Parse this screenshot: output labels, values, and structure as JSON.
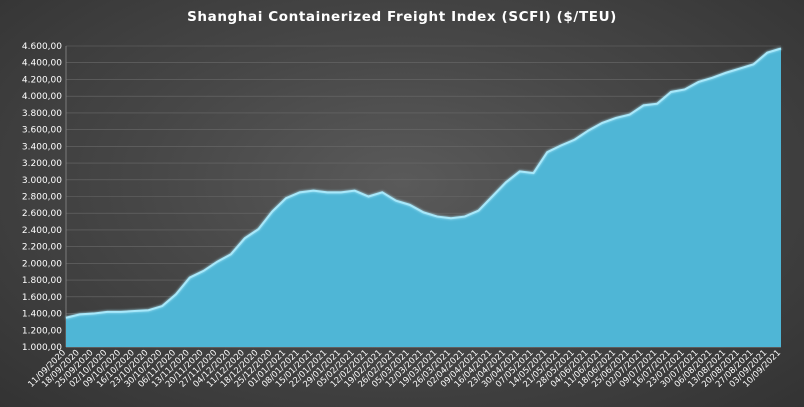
{
  "chart_data": {
    "type": "area",
    "title": "Shanghai Containerized Freight Index  (SCFI) ($/TEU)",
    "xlabel": "",
    "ylabel": "",
    "ylim": [
      1000,
      4600
    ],
    "yticks": [
      1000,
      1200,
      1400,
      1600,
      1800,
      2000,
      2200,
      2400,
      2600,
      2800,
      3000,
      3200,
      3400,
      3600,
      3800,
      4000,
      4200,
      4400,
      4600
    ],
    "ytick_labels": [
      "1.000,00",
      "1.200,00",
      "1.400,00",
      "1.600,00",
      "1.800,00",
      "2.000,00",
      "2.200,00",
      "2.400,00",
      "2.600,00",
      "2.800,00",
      "3.000,00",
      "3.200,00",
      "3.400,00",
      "3.600,00",
      "3.800,00",
      "4.000,00",
      "4.200,00",
      "4.400,00",
      "4.600,00"
    ],
    "grid": true,
    "legend": "none",
    "colors": {
      "fill": "#4fb6d6",
      "line": "#a8e8fa"
    },
    "x": [
      "11/09/2020",
      "18/09/2020",
      "25/09/2020",
      "02/10/2020",
      "09/10/2020",
      "16/10/2020",
      "23/10/2020",
      "30/10/2020",
      "06/11/2020",
      "13/11/2020",
      "20/11/2020",
      "27/11/2020",
      "04/12/2020",
      "11/12/2020",
      "18/12/2020",
      "25/12/2020",
      "01/01/2021",
      "08/01/2021",
      "15/01/2021",
      "22/01/2021",
      "29/01/2021",
      "05/02/2021",
      "12/02/2021",
      "19/02/2021",
      "26/02/2021",
      "05/03/2021",
      "12/03/2021",
      "19/03/2021",
      "26/03/2021",
      "02/04/2021",
      "09/04/2021",
      "16/04/2021",
      "23/04/2021",
      "30/04/2021",
      "07/05/2021",
      "14/05/2021",
      "21/05/2021",
      "28/05/2021",
      "04/06/2021",
      "11/06/2021",
      "18/06/2021",
      "25/06/2021",
      "02/07/2021",
      "09/07/2021",
      "16/07/2021",
      "23/07/2021",
      "30/07/2021",
      "06/08/2021",
      "13/08/2021",
      "20/08/2021",
      "27/08/2021",
      "03/09/2021",
      "10/09/2021"
    ],
    "values": [
      1350,
      1390,
      1400,
      1420,
      1420,
      1430,
      1440,
      1490,
      1630,
      1830,
      1910,
      2020,
      2110,
      2300,
      2410,
      2620,
      2780,
      2850,
      2870,
      2850,
      2850,
      2870,
      2800,
      2850,
      2750,
      2700,
      2610,
      2560,
      2540,
      2560,
      2630,
      2800,
      2970,
      3100,
      3080,
      3330,
      3410,
      3480,
      3590,
      3680,
      3740,
      3780,
      3890,
      3910,
      4050,
      4080,
      4170,
      4220,
      4280,
      4330,
      4380,
      4520,
      4570
    ],
    "series": [
      {
        "name": "",
        "values": "see values"
      }
    ]
  }
}
